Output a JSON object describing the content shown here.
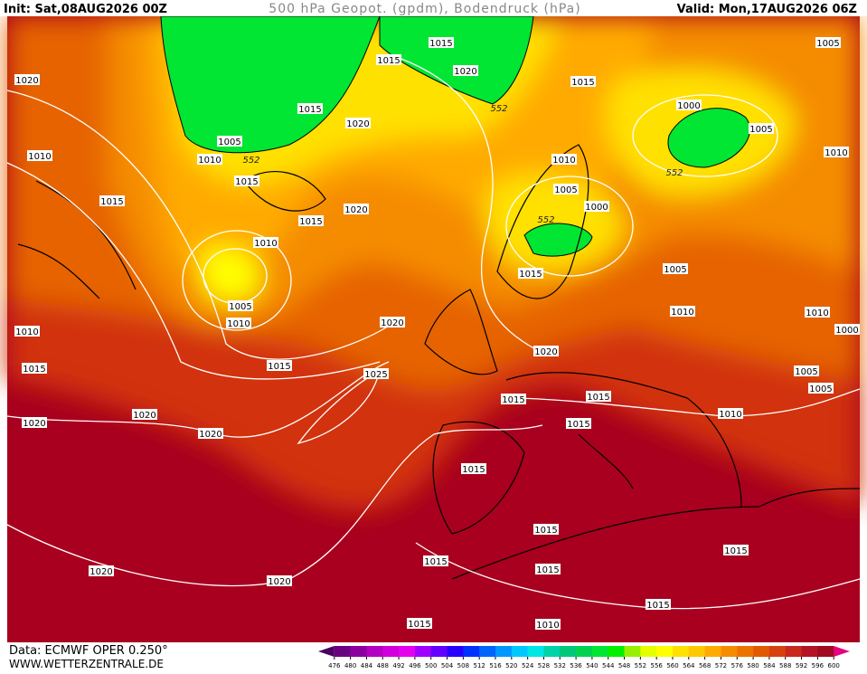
{
  "header": {
    "init": "Init: Sat,08AUG2026 00Z",
    "title": "500 hPa Geopot. (gpdm), Bodendruck (hPa)",
    "valid": "Valid: Mon,17AUG2026 06Z"
  },
  "footer": {
    "source": "Data: ECMWF OPER 0.250°",
    "site": "WWW.WETTERZENTRALE.DE"
  },
  "pressure_labels": [
    "1015",
    "1015",
    "1020",
    "1020",
    "1015",
    "1005",
    "1015",
    "1020",
    "1000",
    "1005",
    "1005",
    "1010",
    "1010",
    "1010",
    "1010",
    "1015",
    "1005",
    "1015",
    "1000",
    "1020",
    "1015",
    "1010",
    "1015",
    "1005",
    "1005",
    "1010",
    "1010",
    "1010",
    "1020",
    "1010",
    "1000",
    "1020",
    "1015",
    "1015",
    "1025",
    "1005",
    "1015",
    "1015",
    "1005",
    "1010",
    "1020",
    "1020",
    "1015",
    "1020",
    "1015",
    "1015",
    "1015",
    "1015",
    "1015",
    "1020",
    "1020",
    "1015",
    "1015",
    "1010"
  ],
  "height_labels": [
    "552",
    "552",
    "552",
    "552"
  ],
  "colorbar": {
    "ticks": [
      476,
      480,
      484,
      488,
      492,
      496,
      500,
      504,
      508,
      512,
      516,
      520,
      524,
      528,
      532,
      536,
      540,
      544,
      548,
      552,
      556,
      560,
      564,
      568,
      572,
      576,
      580,
      584,
      588,
      592,
      596,
      600
    ],
    "colors": [
      "#4b0063",
      "#6a0080",
      "#8c00a0",
      "#b400c0",
      "#d200dc",
      "#e600f0",
      "#a000ff",
      "#6400ff",
      "#2800ff",
      "#0032ff",
      "#0064ff",
      "#0096ff",
      "#00c8ff",
      "#00e6e6",
      "#00d2aa",
      "#00c878",
      "#00d250",
      "#00e632",
      "#00f000",
      "#96f000",
      "#e6ff00",
      "#ffff00",
      "#ffe100",
      "#ffc800",
      "#ffaa00",
      "#f58c00",
      "#eb7300",
      "#e15a00",
      "#d7410f",
      "#c8281e",
      "#b41423",
      "#a00a23",
      "#e6007d"
    ]
  }
}
